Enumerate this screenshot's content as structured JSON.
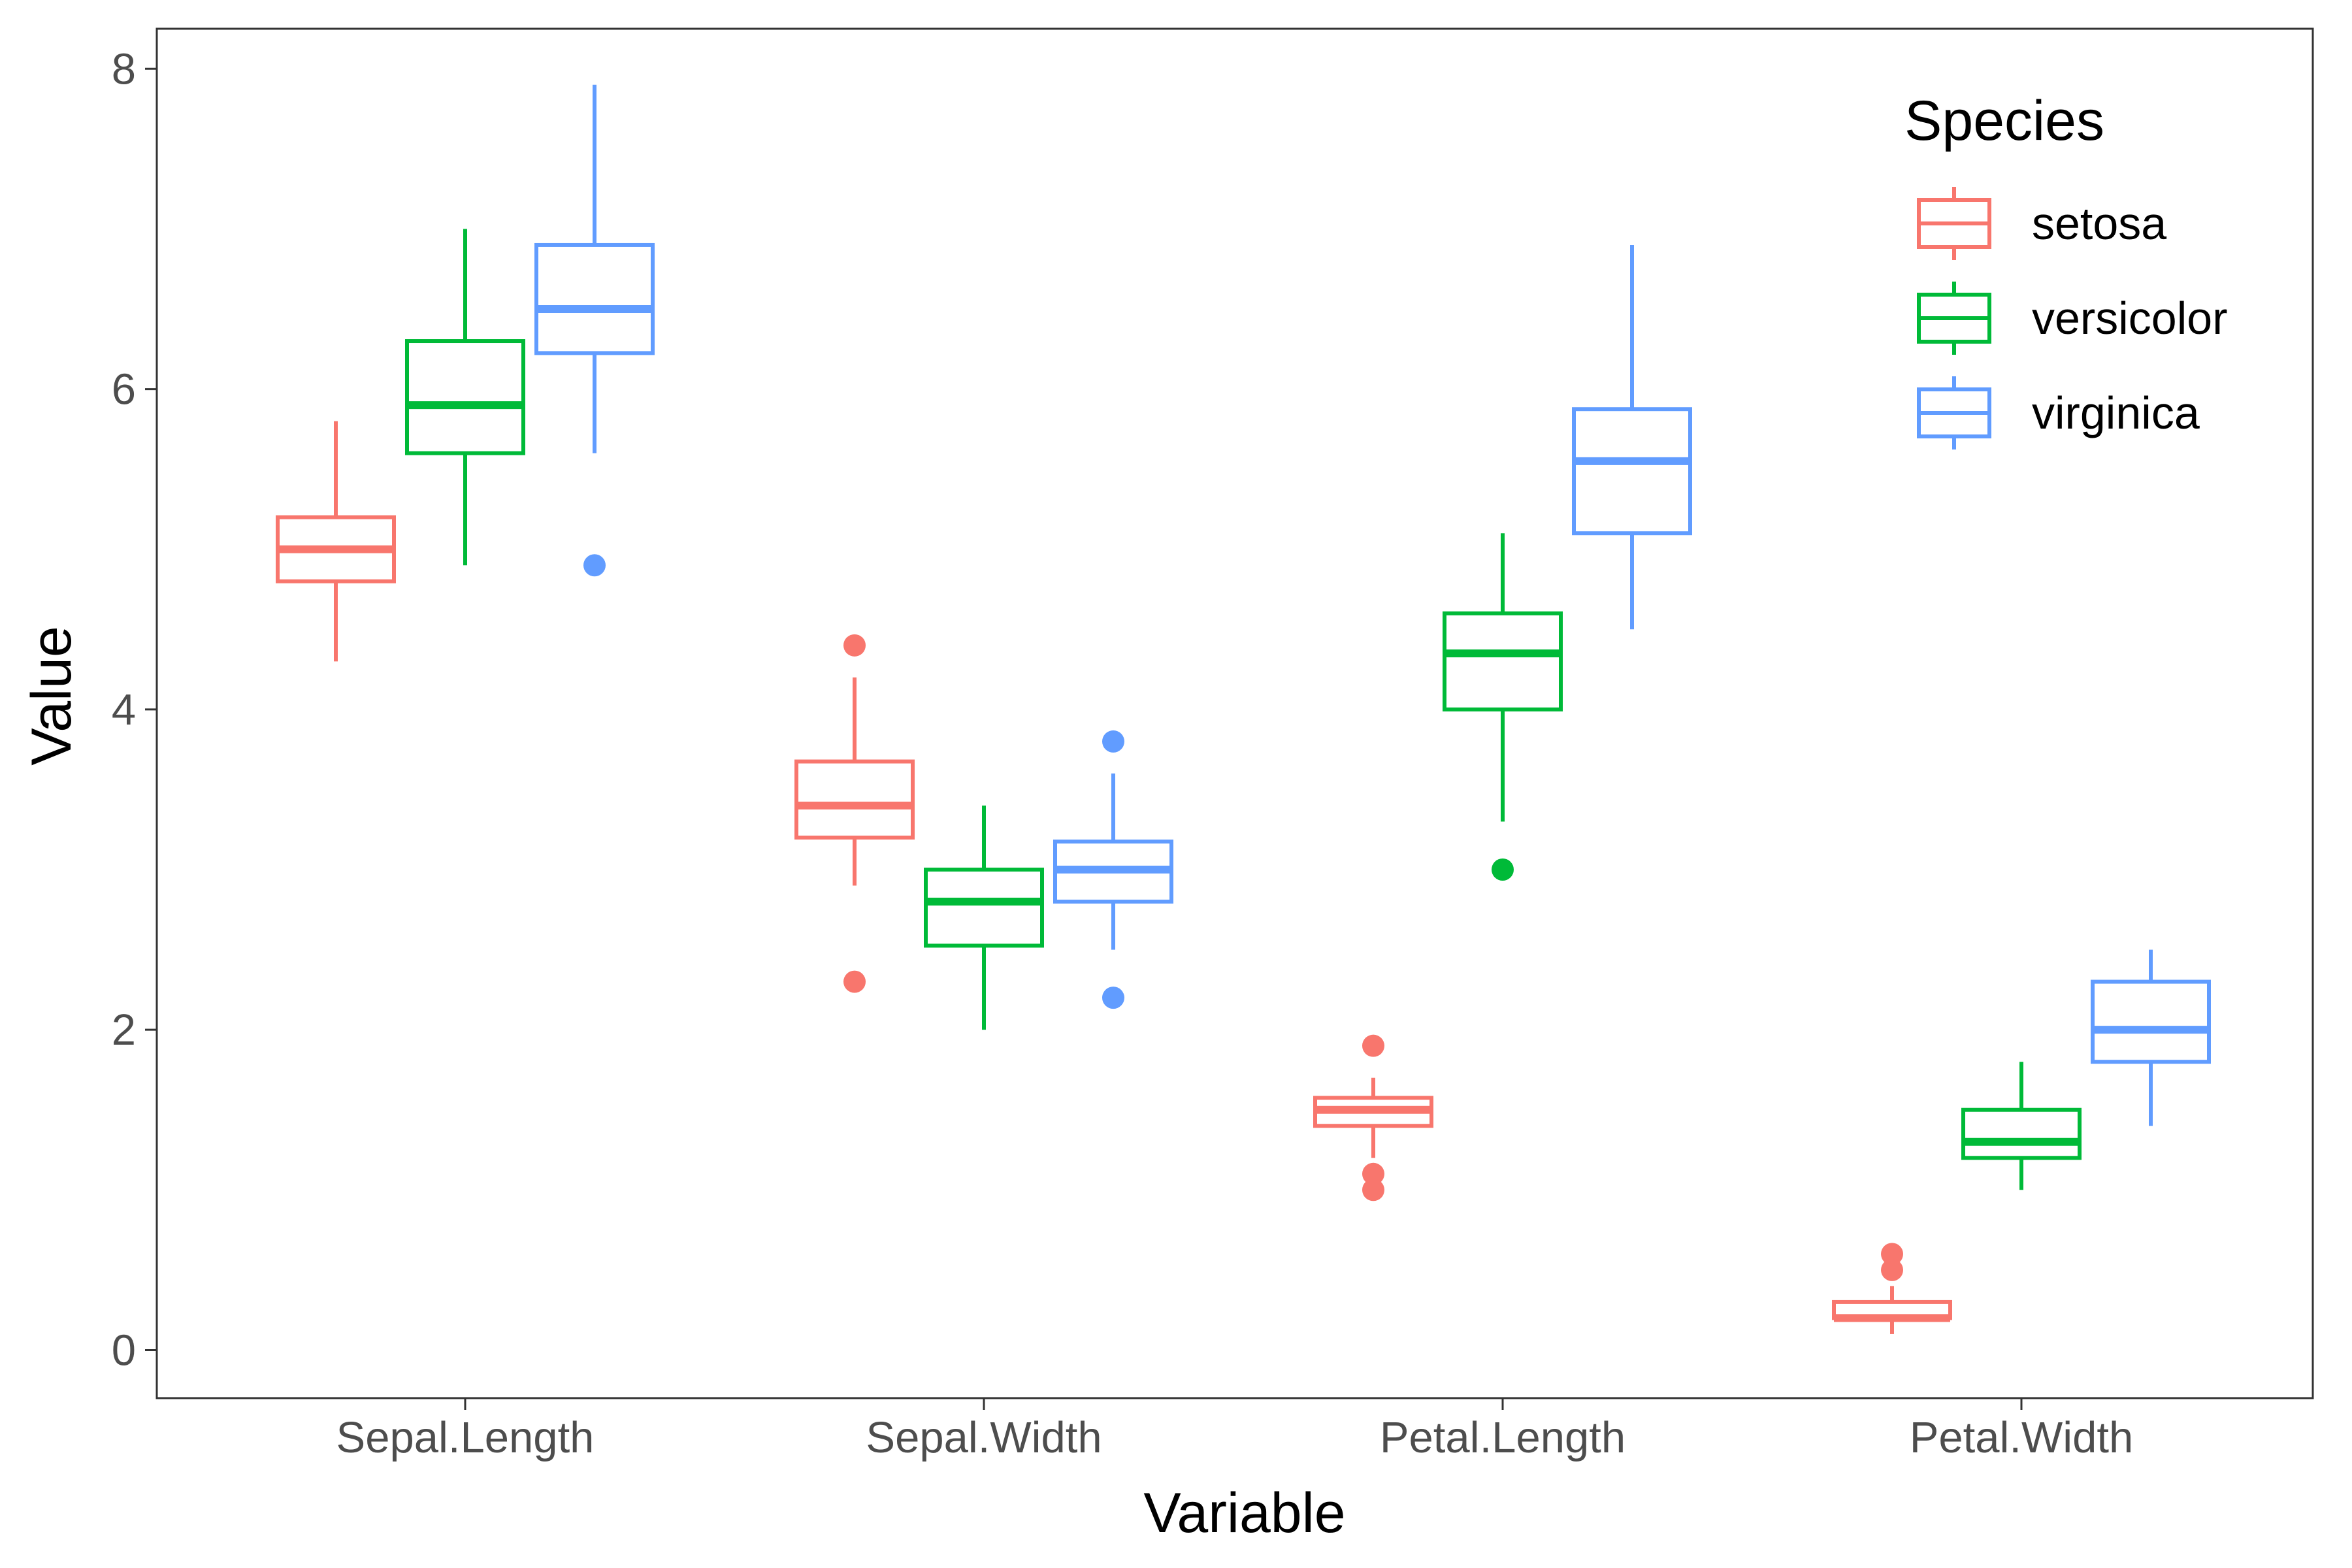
{
  "chart_data": {
    "type": "boxplot",
    "xlabel": "Variable",
    "ylabel": "Value",
    "ylim": [
      -0.3,
      8.25
    ],
    "yticks": [
      0,
      2,
      4,
      6,
      8
    ],
    "categories": [
      "Sepal.Length",
      "Sepal.Width",
      "Petal.Length",
      "Petal.Width"
    ],
    "legend": {
      "title": "Species",
      "position": "top-right"
    },
    "grid": false,
    "series": [
      {
        "name": "setosa",
        "color": "#F8766D",
        "boxes": [
          {
            "whisker_low": 4.3,
            "q1": 4.8,
            "median": 5.0,
            "q3": 5.2,
            "whisker_high": 5.8,
            "outliers": []
          },
          {
            "whisker_low": 2.9,
            "q1": 3.2,
            "median": 3.4,
            "q3": 3.675,
            "whisker_high": 4.2,
            "outliers": [
              4.4,
              2.3
            ]
          },
          {
            "whisker_low": 1.2,
            "q1": 1.4,
            "median": 1.5,
            "q3": 1.575,
            "whisker_high": 1.7,
            "outliers": [
              1.9,
              1.1,
              1.0
            ]
          },
          {
            "whisker_low": 0.1,
            "q1": 0.2,
            "median": 0.2,
            "q3": 0.3,
            "whisker_high": 0.4,
            "outliers": [
              0.6,
              0.5
            ]
          }
        ]
      },
      {
        "name": "versicolor",
        "color": "#00BA38",
        "boxes": [
          {
            "whisker_low": 4.9,
            "q1": 5.6,
            "median": 5.9,
            "q3": 6.3,
            "whisker_high": 7.0,
            "outliers": []
          },
          {
            "whisker_low": 2.0,
            "q1": 2.525,
            "median": 2.8,
            "q3": 3.0,
            "whisker_high": 3.4,
            "outliers": []
          },
          {
            "whisker_low": 3.3,
            "q1": 4.0,
            "median": 4.35,
            "q3": 4.6,
            "whisker_high": 5.1,
            "outliers": [
              3.0
            ]
          },
          {
            "whisker_low": 1.0,
            "q1": 1.2,
            "median": 1.3,
            "q3": 1.5,
            "whisker_high": 1.8,
            "outliers": []
          }
        ]
      },
      {
        "name": "virginica",
        "color": "#619CFF",
        "boxes": [
          {
            "whisker_low": 5.6,
            "q1": 6.225,
            "median": 6.5,
            "q3": 6.9,
            "whisker_high": 7.9,
            "outliers": [
              4.9
            ]
          },
          {
            "whisker_low": 2.5,
            "q1": 2.8,
            "median": 3.0,
            "q3": 3.175,
            "whisker_high": 3.6,
            "outliers": [
              3.8,
              2.2
            ]
          },
          {
            "whisker_low": 4.5,
            "q1": 5.1,
            "median": 5.55,
            "q3": 5.875,
            "whisker_high": 6.9,
            "outliers": []
          },
          {
            "whisker_low": 1.4,
            "q1": 1.8,
            "median": 2.0,
            "q3": 2.3,
            "whisker_high": 2.5,
            "outliers": []
          }
        ]
      }
    ]
  }
}
